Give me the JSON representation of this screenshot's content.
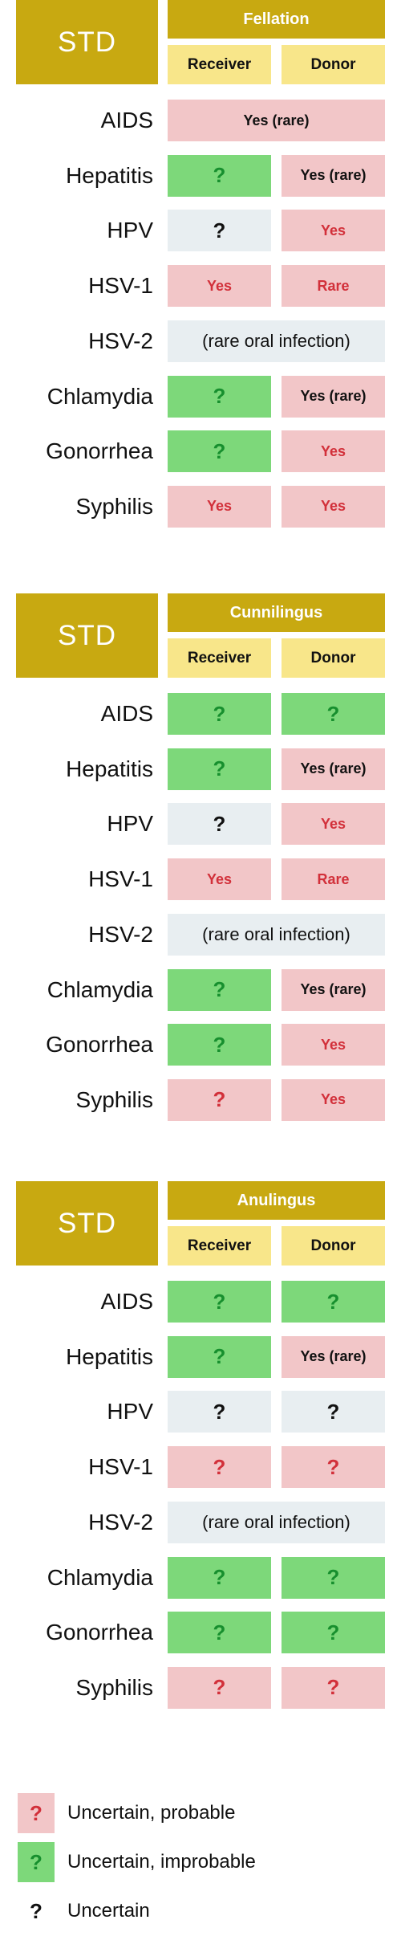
{
  "colors": {
    "gold": "#c8a911",
    "pale_yellow": "#f8e68a",
    "pink": "#f2c6c8",
    "green": "#7dd87a",
    "grey": "#e8eef1",
    "red_text": "#d2303a",
    "green_text": "#178f2e",
    "black_text": "#111111"
  },
  "tables": [
    {
      "std_label": "STD",
      "activity": "Fellation",
      "receiver_label": "Receiver",
      "donor_label": "Donor",
      "rows": [
        {
          "label": "AIDS",
          "span": {
            "text": "Yes (rare)",
            "style": "pink",
            "text_color": "black"
          }
        },
        {
          "label": "Hepatitis",
          "receiver": {
            "text": "?",
            "style": "green",
            "text_color": "green"
          },
          "donor": {
            "text": "Yes (rare)",
            "style": "pink",
            "text_color": "black"
          }
        },
        {
          "label": "HPV",
          "receiver": {
            "text": "?",
            "style": "grey",
            "text_color": "black"
          },
          "donor": {
            "text": "Yes",
            "style": "pink",
            "text_color": "red"
          }
        },
        {
          "label": "HSV-1",
          "receiver": {
            "text": "Yes",
            "style": "pink",
            "text_color": "red"
          },
          "donor": {
            "text": "Rare",
            "style": "pink",
            "text_color": "red"
          }
        },
        {
          "label": "HSV-2",
          "span": {
            "text": "(rare oral infection)",
            "style": "grey",
            "text_color": "black",
            "plain": true
          }
        },
        {
          "label": "Chlamydia",
          "receiver": {
            "text": "?",
            "style": "green",
            "text_color": "green"
          },
          "donor": {
            "text": "Yes (rare)",
            "style": "pink",
            "text_color": "black"
          }
        },
        {
          "label": "Gonorrhea",
          "receiver": {
            "text": "?",
            "style": "green",
            "text_color": "green"
          },
          "donor": {
            "text": "Yes",
            "style": "pink",
            "text_color": "red"
          }
        },
        {
          "label": "Syphilis",
          "receiver": {
            "text": "Yes",
            "style": "pink",
            "text_color": "red"
          },
          "donor": {
            "text": "Yes",
            "style": "pink",
            "text_color": "red"
          }
        }
      ]
    },
    {
      "std_label": "STD",
      "activity": "Cunnilingus",
      "receiver_label": "Receiver",
      "donor_label": "Donor",
      "rows": [
        {
          "label": "AIDS",
          "receiver": {
            "text": "?",
            "style": "green",
            "text_color": "green"
          },
          "donor": {
            "text": "?",
            "style": "green",
            "text_color": "green"
          }
        },
        {
          "label": "Hepatitis",
          "receiver": {
            "text": "?",
            "style": "green",
            "text_color": "green"
          },
          "donor": {
            "text": "Yes (rare)",
            "style": "pink",
            "text_color": "black"
          }
        },
        {
          "label": "HPV",
          "receiver": {
            "text": "?",
            "style": "grey",
            "text_color": "black"
          },
          "donor": {
            "text": "Yes",
            "style": "pink",
            "text_color": "red"
          }
        },
        {
          "label": "HSV-1",
          "receiver": {
            "text": "Yes",
            "style": "pink",
            "text_color": "red"
          },
          "donor": {
            "text": "Rare",
            "style": "pink",
            "text_color": "red"
          }
        },
        {
          "label": "HSV-2",
          "span": {
            "text": "(rare oral infection)",
            "style": "grey",
            "text_color": "black",
            "plain": true
          }
        },
        {
          "label": "Chlamydia",
          "receiver": {
            "text": "?",
            "style": "green",
            "text_color": "green"
          },
          "donor": {
            "text": "Yes (rare)",
            "style": "pink",
            "text_color": "black"
          }
        },
        {
          "label": "Gonorrhea",
          "receiver": {
            "text": "?",
            "style": "green",
            "text_color": "green"
          },
          "donor": {
            "text": "Yes",
            "style": "pink",
            "text_color": "red"
          }
        },
        {
          "label": "Syphilis",
          "receiver": {
            "text": "?",
            "style": "pink",
            "text_color": "red"
          },
          "donor": {
            "text": "Yes",
            "style": "pink",
            "text_color": "red"
          }
        }
      ]
    },
    {
      "std_label": "STD",
      "activity": "Anulingus",
      "receiver_label": "Receiver",
      "donor_label": "Donor",
      "rows": [
        {
          "label": "AIDS",
          "receiver": {
            "text": "?",
            "style": "green",
            "text_color": "green"
          },
          "donor": {
            "text": "?",
            "style": "green",
            "text_color": "green"
          }
        },
        {
          "label": "Hepatitis",
          "receiver": {
            "text": "?",
            "style": "green",
            "text_color": "green"
          },
          "donor": {
            "text": "Yes (rare)",
            "style": "pink",
            "text_color": "black"
          }
        },
        {
          "label": "HPV",
          "receiver": {
            "text": "?",
            "style": "grey",
            "text_color": "black"
          },
          "donor": {
            "text": "?",
            "style": "grey",
            "text_color": "black"
          }
        },
        {
          "label": "HSV-1",
          "receiver": {
            "text": "?",
            "style": "pink",
            "text_color": "red"
          },
          "donor": {
            "text": "?",
            "style": "pink",
            "text_color": "red"
          }
        },
        {
          "label": "HSV-2",
          "span": {
            "text": "(rare oral infection)",
            "style": "grey",
            "text_color": "black",
            "plain": true
          }
        },
        {
          "label": "Chlamydia",
          "receiver": {
            "text": "?",
            "style": "green",
            "text_color": "green"
          },
          "donor": {
            "text": "?",
            "style": "green",
            "text_color": "green"
          }
        },
        {
          "label": "Gonorrhea",
          "receiver": {
            "text": "?",
            "style": "green",
            "text_color": "green"
          },
          "donor": {
            "text": "?",
            "style": "green",
            "text_color": "green"
          }
        },
        {
          "label": "Syphilis",
          "receiver": {
            "text": "?",
            "style": "pink",
            "text_color": "red"
          },
          "donor": {
            "text": "?",
            "style": "pink",
            "text_color": "red"
          }
        }
      ]
    }
  ],
  "legend": [
    {
      "symbol": "?",
      "style": "pink",
      "text_color": "red",
      "text": "Uncertain, probable"
    },
    {
      "symbol": "?",
      "style": "green",
      "text_color": "green",
      "text": "Uncertain, improbable"
    },
    {
      "symbol": "?",
      "style": "none",
      "text_color": "black",
      "text": "Uncertain"
    }
  ]
}
